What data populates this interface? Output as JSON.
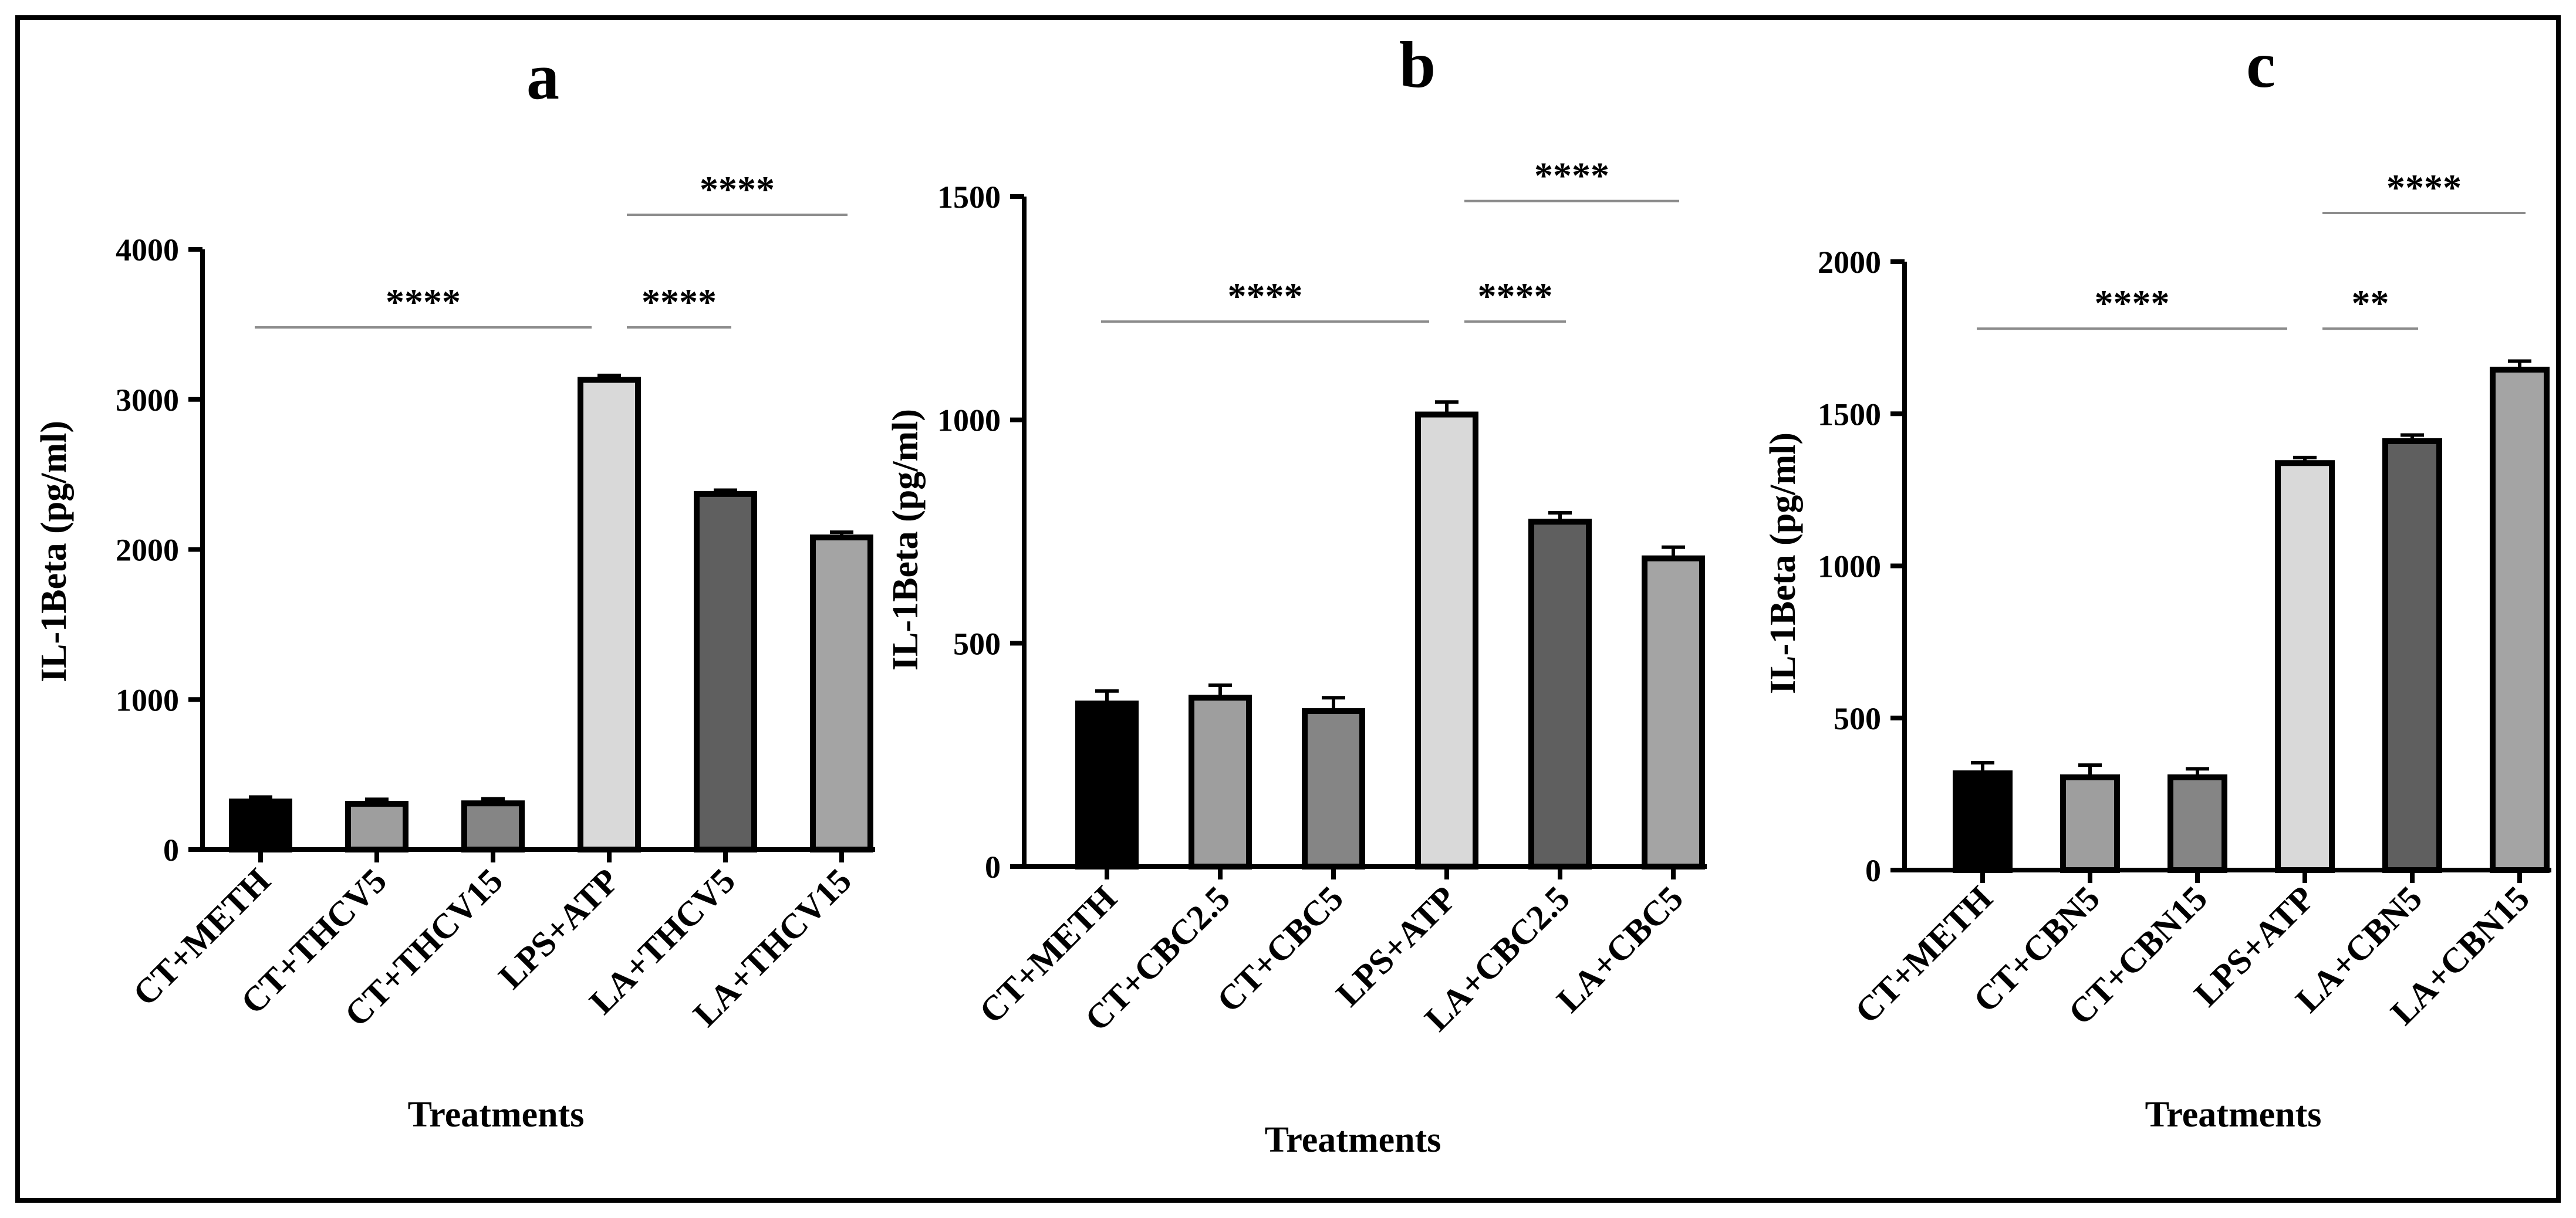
{
  "chart_data": [
    {
      "type": "bar",
      "panel": "a",
      "title": "a",
      "xlabel": "Treatments",
      "ylabel": "IL-1Beta (pg/ml)",
      "ylim": [
        0,
        4000
      ],
      "yticks": [
        0,
        1000,
        2000,
        3000,
        4000
      ],
      "categories": [
        "CT+METH",
        "CT+THCV5",
        "CT+THCV15",
        "LPS+ATP",
        "LA+THCV5",
        "LA+THCV15"
      ],
      "values": [
        320,
        305,
        308,
        3130,
        2370,
        2080
      ],
      "errors": [
        30,
        30,
        30,
        30,
        25,
        35
      ],
      "colors": [
        "#000000",
        "#9e9e9e",
        "#858585",
        "#d9d9d9",
        "#5f5f5f",
        "#a4a4a4"
      ],
      "significance": [
        {
          "from": 0,
          "to": 3,
          "label": "****",
          "level": 3480
        },
        {
          "from": 3,
          "to": 4,
          "label": "****",
          "level": 3480
        },
        {
          "from": 3,
          "to": 5,
          "label": "****",
          "level": 4230
        }
      ]
    },
    {
      "type": "bar",
      "panel": "b",
      "title": "b",
      "xlabel": "Treatments",
      "ylabel": "IL-1Beta (pg/ml)",
      "ylim": [
        0,
        1500
      ],
      "yticks": [
        0,
        500,
        1000,
        1500
      ],
      "categories": [
        "CT+METH",
        "CT+CBC2.5",
        "CT+CBC5",
        "LPS+ATP",
        "LA+CBC2.5",
        "LA+CBC5"
      ],
      "values": [
        365,
        378,
        348,
        1012,
        772,
        690
      ],
      "errors": [
        28,
        28,
        30,
        28,
        20,
        25
      ],
      "colors": [
        "#000000",
        "#9e9e9e",
        "#858585",
        "#d9d9d9",
        "#5f5f5f",
        "#a4a4a4"
      ],
      "significance": [
        {
          "from": 0,
          "to": 3,
          "label": "****",
          "level": 1220
        },
        {
          "from": 3,
          "to": 4,
          "label": "****",
          "level": 1220
        },
        {
          "from": 3,
          "to": 5,
          "label": "****",
          "level": 1490
        }
      ]
    },
    {
      "type": "bar",
      "panel": "c",
      "title": "c",
      "xlabel": "Treatments",
      "ylabel": "IL-1Beta (pg/ml)",
      "ylim": [
        0,
        2000
      ],
      "yticks": [
        0,
        500,
        1000,
        1500,
        2000
      ],
      "categories": [
        "CT+METH",
        "CT+CBN5",
        "CT+CBN15",
        "LPS+ATP",
        "LA+CBN5",
        "LA+CBN15"
      ],
      "values": [
        318,
        305,
        305,
        1338,
        1410,
        1645
      ],
      "errors": [
        35,
        40,
        28,
        18,
        20,
        28
      ],
      "colors": [
        "#000000",
        "#9e9e9e",
        "#858585",
        "#d9d9d9",
        "#5f5f5f",
        "#a4a4a4"
      ],
      "significance": [
        {
          "from": 0,
          "to": 3,
          "label": "****",
          "level": 1780
        },
        {
          "from": 3,
          "to": 4,
          "label": "**",
          "level": 1780
        },
        {
          "from": 3,
          "to": 5,
          "label": "****",
          "level": 2160
        }
      ]
    }
  ]
}
